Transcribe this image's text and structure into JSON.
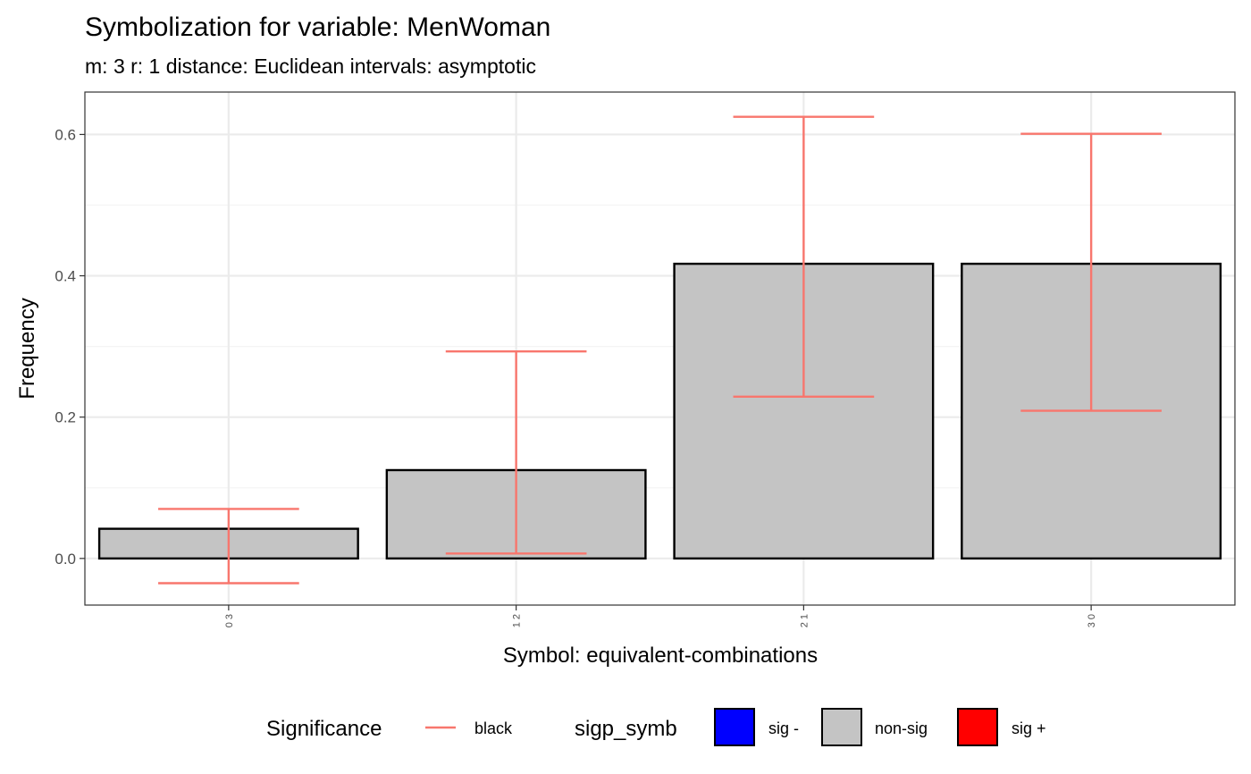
{
  "chart_data": {
    "type": "bar",
    "title": "Symbolization for variable: MenWoman",
    "subtitle": "m: 3  r:  1  distance:  Euclidean  intervals:  asymptotic",
    "xlabel": "Symbol: equivalent-combinations",
    "ylabel": "Frequency",
    "categories": [
      "0 3",
      "1 2",
      "2 1",
      "3 0"
    ],
    "values": [
      0.042,
      0.125,
      0.417,
      0.417
    ],
    "error_lower": [
      -0.035,
      0.007,
      0.229,
      0.209
    ],
    "error_upper": [
      0.07,
      0.293,
      0.625,
      0.601
    ],
    "significance": [
      "non-sig",
      "non-sig",
      "non-sig",
      "non-sig"
    ],
    "ylim": [
      -0.066,
      0.66
    ],
    "yticks": [
      0.0,
      0.2,
      0.4,
      0.6
    ],
    "ytick_labels": [
      "0.0",
      "0.2",
      "0.4",
      "0.6"
    ],
    "grid": true,
    "legend_position": "bottom",
    "colors": {
      "bar_fill": "#c4c4c4",
      "bar_stroke": "#000000",
      "errorbar": "#f8766d",
      "grid_major": "#ebebeb",
      "grid_minor": "#f4f4f4",
      "panel_border": "#333333"
    },
    "legend": {
      "significance": {
        "title": "Significance",
        "items": [
          {
            "label": "black",
            "color": "#f8766d"
          }
        ]
      },
      "sigp_symb": {
        "title": "sigp_symb",
        "items": [
          {
            "label": "sig -",
            "color": "#0000ff"
          },
          {
            "label": "non-sig",
            "color": "#c4c4c4"
          },
          {
            "label": "sig +",
            "color": "#ff0000"
          }
        ]
      }
    }
  }
}
